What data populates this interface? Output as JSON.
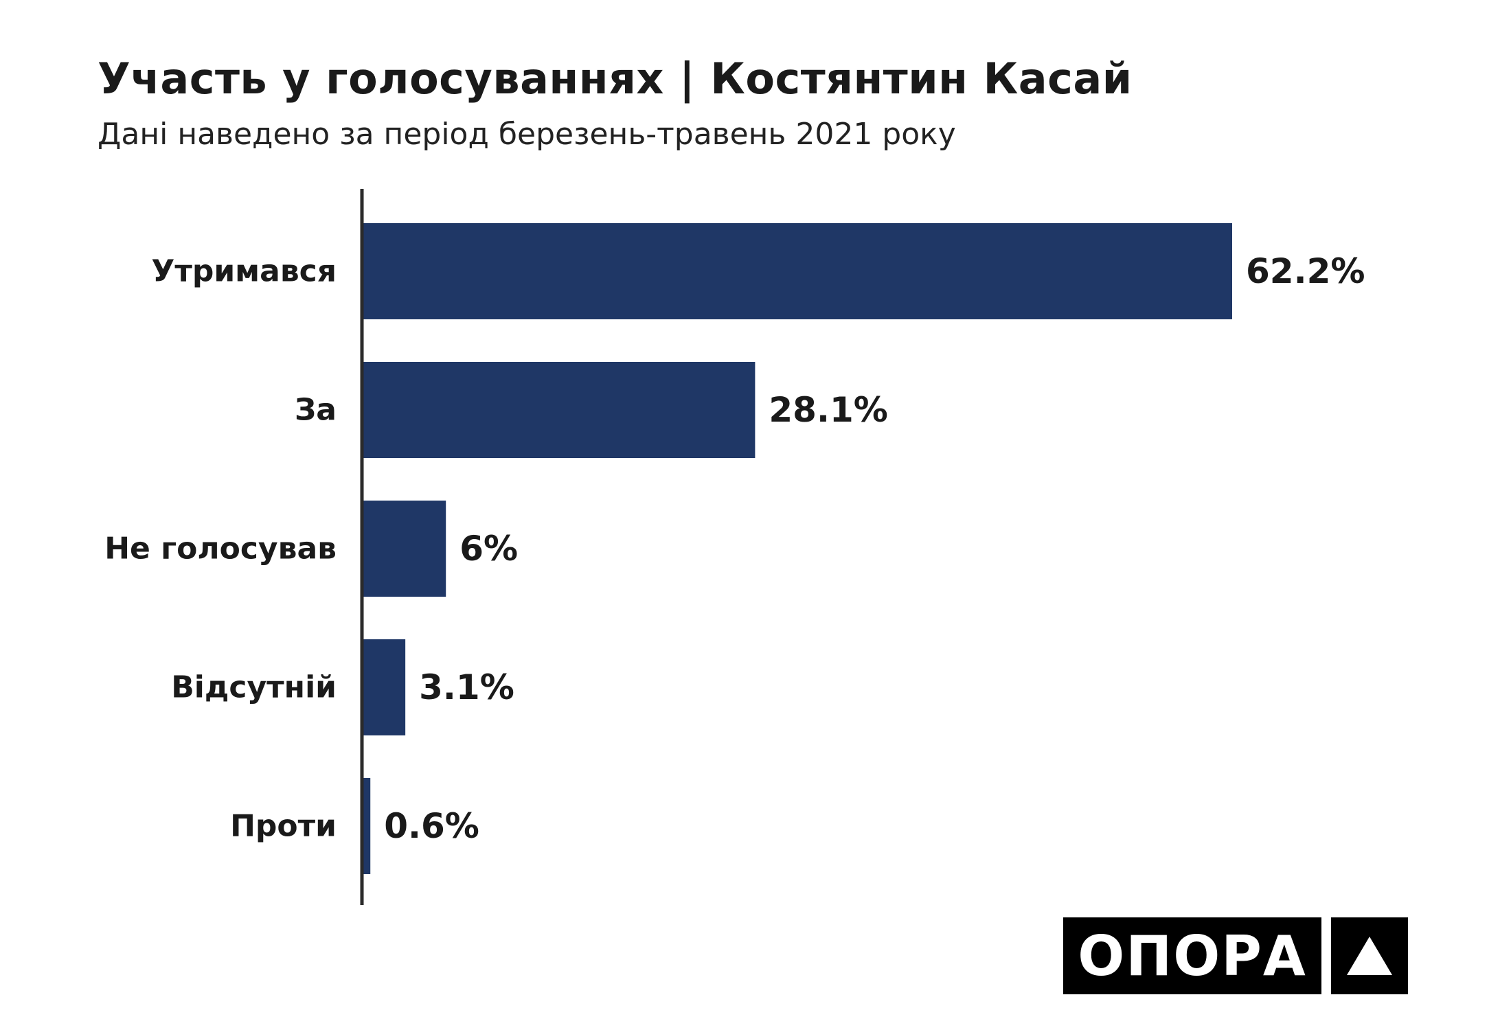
{
  "header": {
    "title": "Участь у голосуваннях | Костянтин Касай",
    "subtitle": "Дані наведено за період березень-травень 2021 року"
  },
  "chart_data": {
    "type": "bar",
    "orientation": "horizontal",
    "categories": [
      "Утримався",
      "За",
      "Не голосував",
      "Відсутній",
      "Проти"
    ],
    "values": [
      62.2,
      28.1,
      6,
      3.1,
      0.6
    ],
    "value_labels": [
      "62.2%",
      "28.1%",
      "6%",
      "3.1%",
      "0.6%"
    ],
    "title": "Участь у голосуваннях | Костянтин Касай",
    "subtitle": "Дані наведено за період березень-травень 2021 року",
    "xlim": [
      0,
      100
    ],
    "grid": false,
    "bar_color": "#1f3766"
  },
  "logo": {
    "text": "ОПОРА",
    "mark_icon": "triangle-up-icon"
  }
}
